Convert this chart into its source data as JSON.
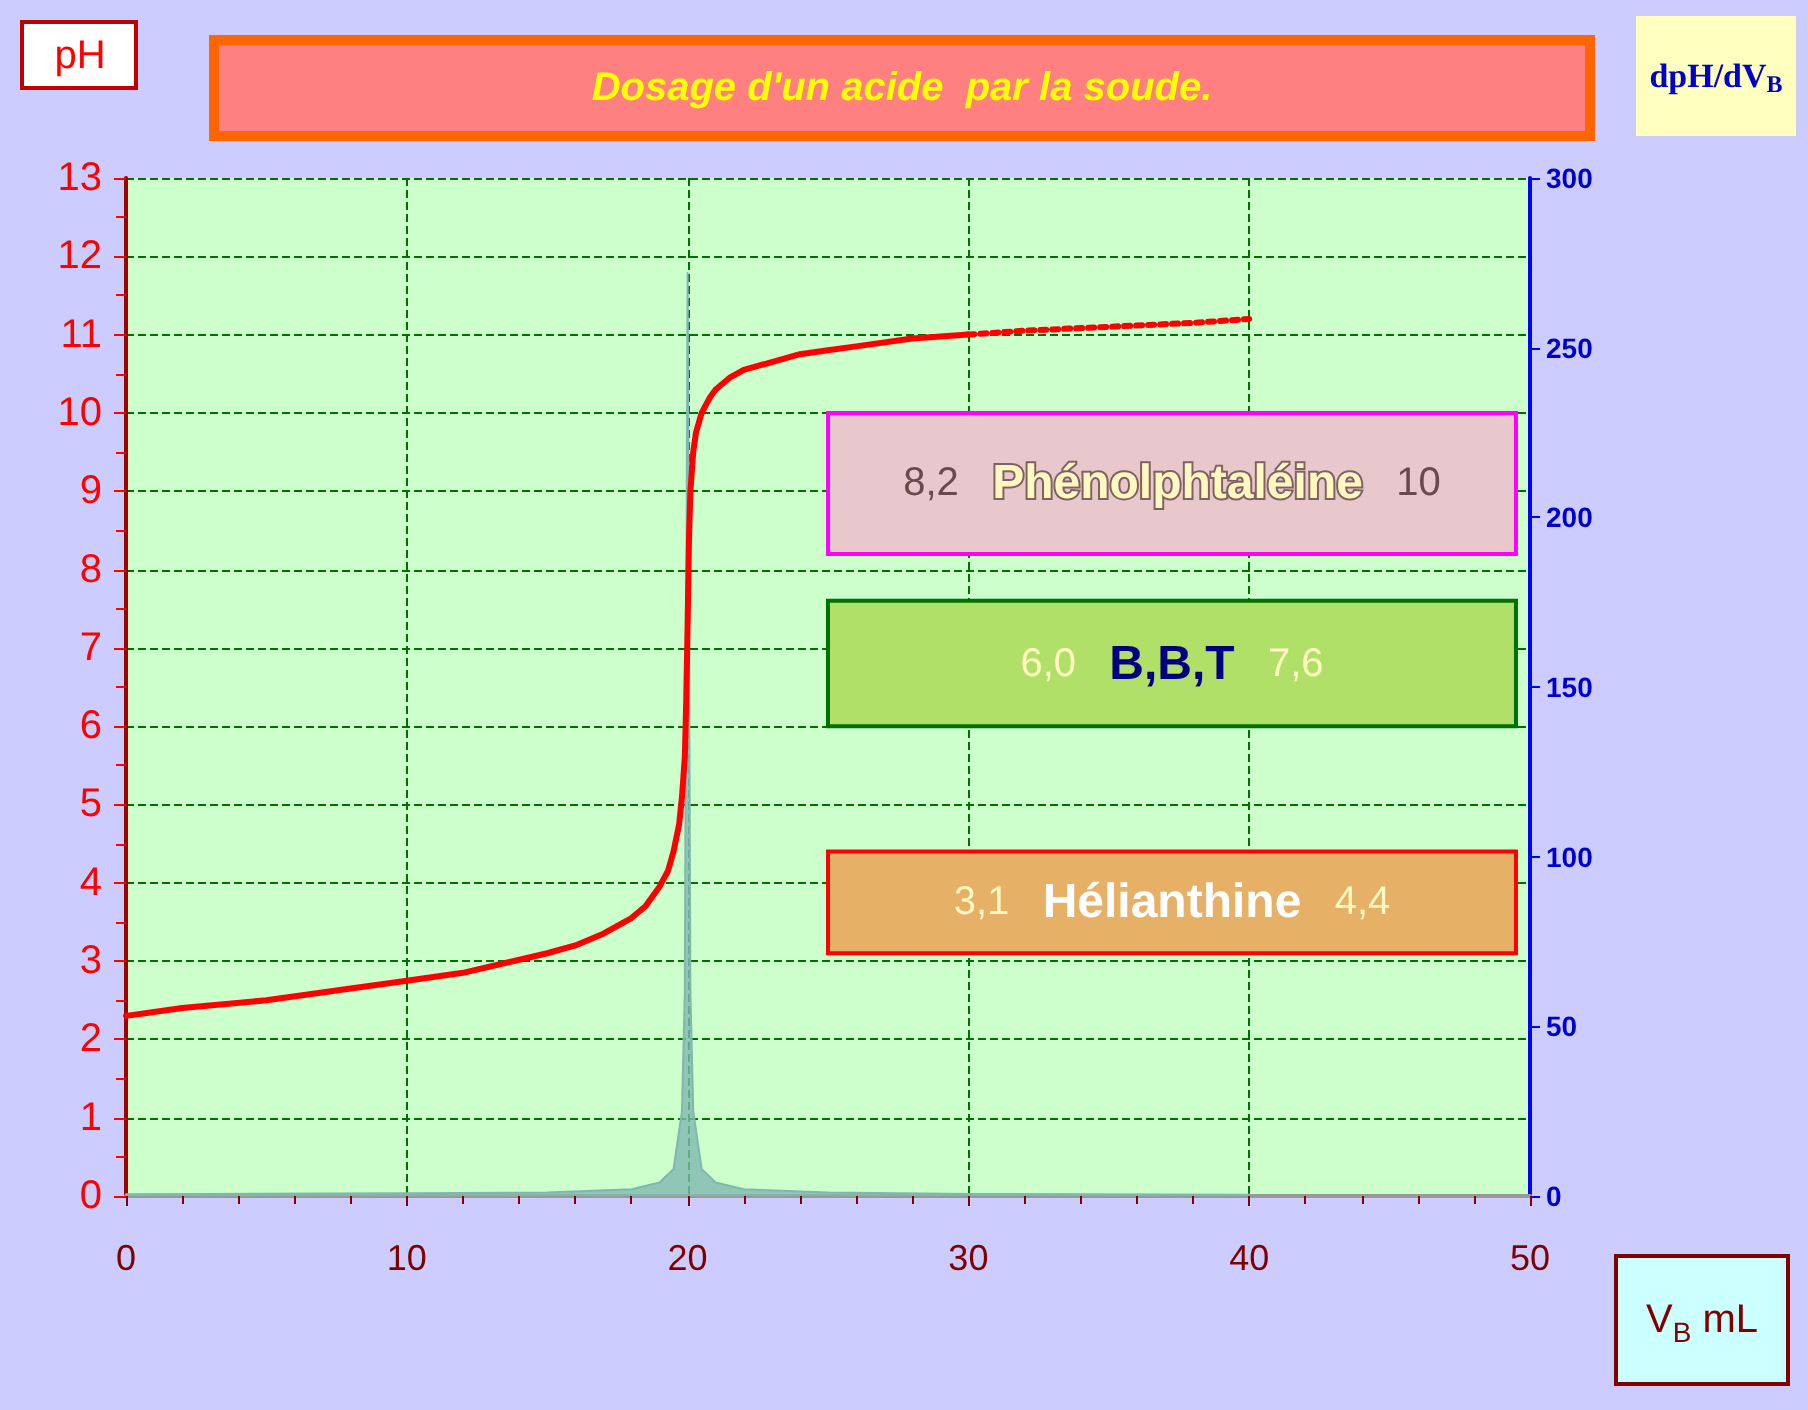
{
  "chart_data": {
    "type": "line",
    "title": "Dosage d'un acide  par la soude.",
    "xlabel": "V$_{B}$ mL",
    "ylabel": "pH",
    "y2label": "dpH/dV$_{B}$",
    "xlim": [
      0,
      50
    ],
    "xticks": [
      0,
      10,
      20,
      30,
      40,
      50
    ],
    "ylim": [
      0,
      13
    ],
    "yticks": [
      0,
      1,
      2,
      3,
      4,
      5,
      6,
      7,
      8,
      9,
      10,
      11,
      12,
      13
    ],
    "y2lim": [
      0,
      300
    ],
    "y2ticks": [
      0,
      50,
      100,
      150,
      200,
      250,
      300
    ],
    "grid": true,
    "marker": "none",
    "series": [
      {
        "color": "#ff0000",
        "line_style": "solid",
        "x": [
          0,
          2,
          5,
          8,
          10,
          12,
          15,
          16,
          17,
          18,
          18.5,
          19,
          19.3,
          19.5,
          19.7,
          19.8,
          19.9,
          19.95,
          20,
          20.05,
          20.1,
          20.2,
          20.3,
          20.5,
          20.8,
          21,
          21.5,
          22,
          23,
          24,
          25,
          26,
          28,
          30
        ],
        "values": [
          2.3,
          2.4,
          2.5,
          2.65,
          2.75,
          2.85,
          3.1,
          3.2,
          3.35,
          3.55,
          3.7,
          3.95,
          4.15,
          4.4,
          4.75,
          5.1,
          5.6,
          6.3,
          7.3,
          8.4,
          9.0,
          9.5,
          9.75,
          10.0,
          10.2,
          10.3,
          10.45,
          10.55,
          10.65,
          10.75,
          10.8,
          10.85,
          10.95,
          11.0
        ]
      },
      {
        "color": "#ff0000",
        "line_style": "dotted",
        "x": [
          30,
          32,
          35,
          38,
          40
        ],
        "values": [
          11.0,
          11.05,
          11.1,
          11.15,
          11.2
        ]
      },
      {
        "type": "area",
        "axis": "y2",
        "color": "#80b8b0",
        "line_style": "solid",
        "x": [
          0,
          10,
          15,
          18,
          19,
          19.5,
          19.8,
          19.9,
          20,
          20.1,
          20.2,
          20.5,
          21,
          22,
          25,
          30,
          40
        ],
        "values": [
          0.5,
          0.8,
          1,
          2,
          4,
          8,
          25,
          60,
          272,
          60,
          25,
          8,
          4,
          2,
          1,
          0.6,
          0.4
        ]
      }
    ],
    "bands": [
      {
        "axis": "y",
        "from": 8.2,
        "to": 10,
        "label": "8,2 Phénolphtaléine 10",
        "color": "#e8c8cc"
      },
      {
        "axis": "y",
        "from": 6.0,
        "to": 7.6,
        "label": "6,0 B,B,T 7,6",
        "color": "#b0e068"
      },
      {
        "axis": "y",
        "from": 3.1,
        "to": 4.4,
        "label": "3,1 Hélianthine 4,4",
        "color": "#e6b066"
      }
    ]
  }
}
